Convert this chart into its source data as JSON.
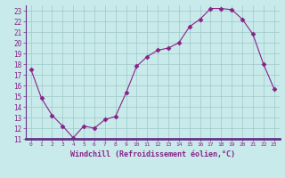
{
  "x": [
    0,
    1,
    2,
    3,
    4,
    5,
    6,
    7,
    8,
    9,
    10,
    11,
    12,
    13,
    14,
    15,
    16,
    17,
    18,
    19,
    20,
    21,
    22,
    23
  ],
  "y": [
    17.5,
    14.8,
    13.2,
    12.2,
    11.1,
    12.2,
    12.0,
    12.8,
    13.1,
    15.3,
    17.8,
    18.7,
    19.3,
    19.5,
    20.0,
    21.5,
    22.2,
    23.2,
    23.2,
    23.1,
    22.2,
    20.8,
    18.0,
    15.7
  ],
  "line_color": "#882288",
  "marker": "D",
  "marker_size": 2.5,
  "bg_color": "#c8eaea",
  "grid_color": "#9ec8c8",
  "xlabel": "Windchill (Refroidissement éolien,°C)",
  "xlabel_color": "#882288",
  "tick_color": "#882288",
  "axis_bg": "#6688aa",
  "ylim": [
    11,
    23.5
  ],
  "xlim": [
    -0.5,
    23.5
  ],
  "yticks": [
    11,
    12,
    13,
    14,
    15,
    16,
    17,
    18,
    19,
    20,
    21,
    22,
    23
  ],
  "xticks": [
    0,
    1,
    2,
    3,
    4,
    5,
    6,
    7,
    8,
    9,
    10,
    11,
    12,
    13,
    14,
    15,
    16,
    17,
    18,
    19,
    20,
    21,
    22,
    23
  ],
  "xtick_labels": [
    "0",
    "1",
    "2",
    "3",
    "4",
    "5",
    "6",
    "7",
    "8",
    "9",
    "10",
    "11",
    "12",
    "13",
    "14",
    "15",
    "16",
    "17",
    "18",
    "19",
    "20",
    "21",
    "22",
    "23"
  ],
  "ytick_labels": [
    "11",
    "12",
    "13",
    "14",
    "15",
    "16",
    "17",
    "18",
    "19",
    "20",
    "21",
    "22",
    "23"
  ]
}
